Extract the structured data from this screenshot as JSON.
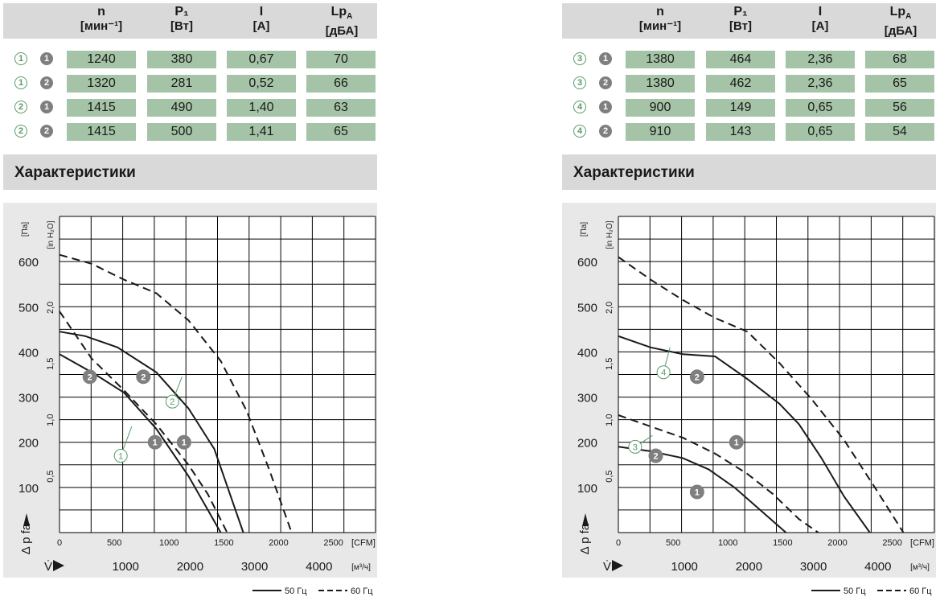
{
  "left": {
    "table": {
      "headers": [
        {
          "main": "n",
          "unit": "[мин⁻¹]"
        },
        {
          "main": "P₁",
          "unit": "[Вт]"
        },
        {
          "main": "I",
          "unit": "[А]"
        },
        {
          "main": "Lp_A",
          "unit": "[дБА]"
        }
      ],
      "rows": [
        {
          "curve": "1",
          "mode": "1",
          "values": [
            "1240",
            "380",
            "0,67",
            "70"
          ]
        },
        {
          "curve": "1",
          "mode": "2",
          "values": [
            "1320",
            "281",
            "0,52",
            "66"
          ]
        },
        {
          "curve": "2",
          "mode": "1",
          "values": [
            "1415",
            "490",
            "1,40",
            "63"
          ]
        },
        {
          "curve": "2",
          "mode": "2",
          "values": [
            "1415",
            "500",
            "1,41",
            "65"
          ]
        }
      ]
    },
    "section_title": "Характеристики"
  },
  "right": {
    "table": {
      "headers": [
        {
          "main": "n",
          "unit": "[мин⁻¹]"
        },
        {
          "main": "P₁",
          "unit": "[Вт]"
        },
        {
          "main": "I",
          "unit": "[А]"
        },
        {
          "main": "Lp_A",
          "unit": "[дБА]"
        }
      ],
      "rows": [
        {
          "curve": "3",
          "mode": "1",
          "values": [
            "1380",
            "464",
            "2,36",
            "68"
          ]
        },
        {
          "curve": "3",
          "mode": "2",
          "values": [
            "1380",
            "462",
            "2,36",
            "65"
          ]
        },
        {
          "curve": "4",
          "mode": "1",
          "values": [
            "900",
            "149",
            "0,65",
            "56"
          ]
        },
        {
          "curve": "4",
          "mode": "2",
          "values": [
            "910",
            "143",
            "0,65",
            "54"
          ]
        }
      ]
    },
    "section_title": "Характеристики"
  },
  "colors": {
    "header_bg": "#d9d9d9",
    "cell_bg": "#a5c4a7",
    "chart_bg": "#e8e8e8",
    "grid": "#000000",
    "marker_green": "#5a9a68",
    "marker_gray": "#7f7f7f"
  },
  "chart_data": [
    {
      "type": "line",
      "y_unit_label": "[Па]",
      "y2_unit_label": "[in H₂O]",
      "y_label": "Δ p_fa",
      "x_label": "V̇",
      "x_unit_top": "[CFM]",
      "x_unit_bottom": "[м³/ч]",
      "ylim": [
        0,
        700
      ],
      "xlim_m3h": [
        0,
        4900
      ],
      "y_ticks": [
        100,
        200,
        300,
        400,
        500,
        600
      ],
      "y2_ticks": [
        "0,5",
        "1,0",
        "1,5",
        "2,0"
      ],
      "y2_tick_pa": [
        124.5,
        249,
        373.5,
        498
      ],
      "x_ticks_cfm": [
        "0",
        "500",
        "1000",
        "1500",
        "2000",
        "2500"
      ],
      "x_ticks_cfm_m3h": [
        0,
        849.5,
        1699,
        2548.5,
        3398,
        4247.5
      ],
      "x_ticks_m3h": [
        "1000",
        "2000",
        "3000",
        "4000"
      ],
      "x_ticks_m3h_values": [
        1000,
        2000,
        3000,
        4000
      ],
      "legend": [
        "50 Гц",
        "60 Гц"
      ],
      "series": [
        {
          "curve": "1",
          "freq": "50 Гц",
          "x": [
            0,
            500,
            1000,
            1500,
            2000,
            2300,
            2500
          ],
          "y": [
            395,
            355,
            310,
            230,
            125,
            50,
            0
          ]
        },
        {
          "curve": "1",
          "freq": "60 Гц",
          "x": [
            0,
            500,
            1000,
            1500,
            2000,
            2300,
            2600
          ],
          "y": [
            490,
            385,
            315,
            240,
            150,
            85,
            0
          ]
        },
        {
          "curve": "2",
          "freq": "50 Гц",
          "x": [
            0,
            400,
            900,
            1500,
            2000,
            2400,
            2850
          ],
          "y": [
            445,
            435,
            410,
            355,
            275,
            185,
            0
          ]
        },
        {
          "curve": "2",
          "freq": "60 Гц",
          "x": [
            0,
            500,
            1000,
            1500,
            2000,
            2500,
            2900,
            3250,
            3600
          ],
          "y": [
            615,
            595,
            560,
            530,
            470,
            380,
            270,
            140,
            0
          ]
        }
      ],
      "curve_markers": [
        {
          "label": "1",
          "style": "outline"
        },
        {
          "label": "2",
          "style": "outline"
        },
        {
          "label": "1",
          "style": "filled"
        },
        {
          "label": "1",
          "style": "filled"
        },
        {
          "label": "2",
          "style": "filled"
        },
        {
          "label": "2",
          "style": "filled"
        }
      ]
    },
    {
      "type": "line",
      "y_unit_label": "[Па]",
      "y2_unit_label": "[in H₂O]",
      "y_label": "Δ p_fa",
      "x_label": "V̇",
      "x_unit_top": "[CFM]",
      "x_unit_bottom": "[м³/ч]",
      "ylim": [
        0,
        700
      ],
      "xlim_m3h": [
        0,
        4900
      ],
      "y_ticks": [
        100,
        200,
        300,
        400,
        500,
        600
      ],
      "y2_ticks": [
        "0,5",
        "1,0",
        "1,5",
        "2,0"
      ],
      "y2_tick_pa": [
        124.5,
        249,
        373.5,
        498
      ],
      "x_ticks_cfm": [
        "0",
        "500",
        "1000",
        "1500",
        "2000",
        "2500"
      ],
      "x_ticks_cfm_m3h": [
        0,
        849.5,
        1699,
        2548.5,
        3398,
        4247.5
      ],
      "x_ticks_m3h": [
        "1000",
        "2000",
        "3000",
        "4000"
      ],
      "x_ticks_m3h_values": [
        1000,
        2000,
        3000,
        4000
      ],
      "legend": [
        "50 Гц",
        "60 Гц"
      ],
      "series": [
        {
          "curve": "3",
          "freq": "50 Гц",
          "x": [
            0,
            500,
            1000,
            1500,
            2000,
            2500,
            2800,
            3150,
            3500,
            3900
          ],
          "y": [
            435,
            410,
            395,
            390,
            340,
            285,
            240,
            165,
            80,
            0
          ]
        },
        {
          "curve": "3",
          "freq": "60 Гц",
          "x": [
            0,
            500,
            1000,
            1500,
            2000,
            2500,
            3000,
            3500,
            4000,
            4420
          ],
          "y": [
            610,
            560,
            515,
            475,
            445,
            375,
            295,
            205,
            95,
            0
          ]
        },
        {
          "curve": "4",
          "freq": "50 Гц",
          "x": [
            0,
            500,
            1000,
            1400,
            1800,
            2200,
            2600
          ],
          "y": [
            190,
            180,
            165,
            140,
            100,
            50,
            0
          ]
        },
        {
          "curve": "4",
          "freq": "60 Гц",
          "x": [
            0,
            500,
            1000,
            1500,
            2000,
            2400,
            2800,
            3100
          ],
          "y": [
            260,
            235,
            210,
            175,
            130,
            85,
            30,
            0
          ]
        }
      ],
      "curve_markers": [
        {
          "label": "3",
          "style": "outline"
        },
        {
          "label": "4",
          "style": "outline"
        },
        {
          "label": "2",
          "style": "filled"
        },
        {
          "label": "1",
          "style": "filled"
        },
        {
          "label": "2",
          "style": "filled"
        },
        {
          "label": "1",
          "style": "filled"
        }
      ]
    }
  ]
}
